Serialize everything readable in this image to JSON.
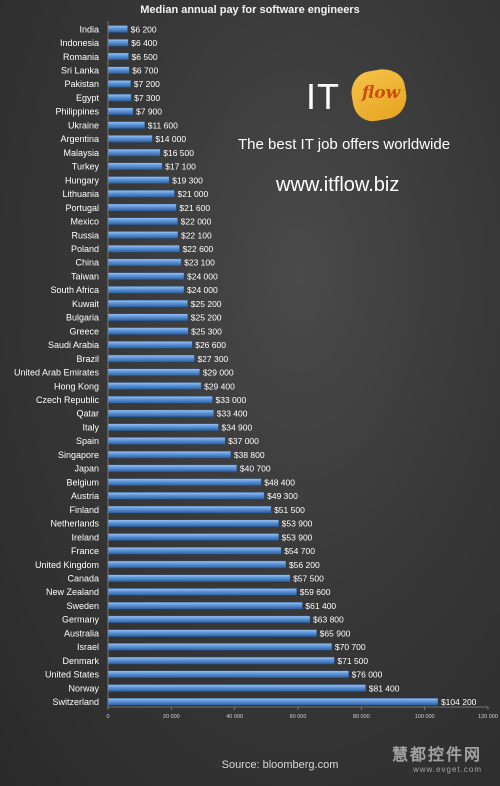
{
  "chart_data": {
    "type": "bar",
    "orientation": "horizontal",
    "title": "Median annual pay for software engineers",
    "categories": [
      "India",
      "Indonesia",
      "Romania",
      "Sri Lanka",
      "Pakistan",
      "Egypt",
      "Philippines",
      "Ukraine",
      "Argentina",
      "Malaysia",
      "Turkey",
      "Hungary",
      "Lithuania",
      "Portugal",
      "Mexico",
      "Russia",
      "Poland",
      "China",
      "Taiwan",
      "South Africa",
      "Kuwait",
      "Bulgaria",
      "Greece",
      "Saudi Arabia",
      "Brazil",
      "United Arab Emirates",
      "Hong Kong",
      "Czech Republic",
      "Qatar",
      "Italy",
      "Spain",
      "Singapore",
      "Japan",
      "Belgium",
      "Austria",
      "Finland",
      "Netherlands",
      "Ireland",
      "France",
      "United Kingdom",
      "Canada",
      "New Zealand",
      "Sweden",
      "Germany",
      "Australia",
      "Israel",
      "Denmark",
      "United States",
      "Norway",
      "Switzerland"
    ],
    "values": [
      6200,
      6400,
      6500,
      6700,
      7200,
      7300,
      7900,
      11600,
      14000,
      16500,
      17100,
      19300,
      21000,
      21600,
      22000,
      22100,
      22600,
      23100,
      24000,
      24000,
      25200,
      25200,
      25300,
      26600,
      27300,
      29000,
      29400,
      33000,
      33400,
      34900,
      37000,
      38800,
      40700,
      48400,
      49300,
      51500,
      53900,
      53900,
      54700,
      56200,
      57500,
      59600,
      61400,
      63800,
      65900,
      70700,
      71500,
      76000,
      81400,
      104200
    ],
    "data_labels": [
      "$6 200",
      "$6 400",
      "$6 500",
      "$6 700",
      "$7 200",
      "$7 300",
      "$7 900",
      "$11 600",
      "$14 000",
      "$16 500",
      "$17 100",
      "$19 300",
      "$21 000",
      "$21 600",
      "$22 000",
      "$22 100",
      "$22 600",
      "$23 100",
      "$24 000",
      "$24 000",
      "$25 200",
      "$25 200",
      "$25 300",
      "$26 600",
      "$27 300",
      "$29 000",
      "$29 400",
      "$33 000",
      "$33 400",
      "$34 900",
      "$37 000",
      "$38 800",
      "$40 700",
      "$48 400",
      "$49 300",
      "$51 500",
      "$53 900",
      "$53 900",
      "$54 700",
      "$56 200",
      "$57 500",
      "$59 600",
      "$61 400",
      "$63 800",
      "$65 900",
      "$70 700",
      "$71 500",
      "$76 000",
      "$81 400",
      "$104 200"
    ],
    "xlim": [
      0,
      120000
    ],
    "x_ticks": [
      0,
      20000,
      40000,
      60000,
      80000,
      100000,
      120000
    ],
    "x_tick_labels": [
      "0",
      "20 000",
      "40 000",
      "60 000",
      "80 000",
      "100 000",
      "120 000"
    ],
    "xlabel": "",
    "ylabel": "",
    "grid": false,
    "bar_color": "#4f86cf"
  },
  "branding": {
    "logo_it": "IT",
    "logo_flow": "flow",
    "tagline": "The best IT job offers worldwide",
    "website": "www.itflow.biz",
    "accent_color": "#e7a320"
  },
  "source": "Source: bloomberg.com",
  "watermark": {
    "main": "慧都控件网",
    "url": "www.evget.com"
  }
}
